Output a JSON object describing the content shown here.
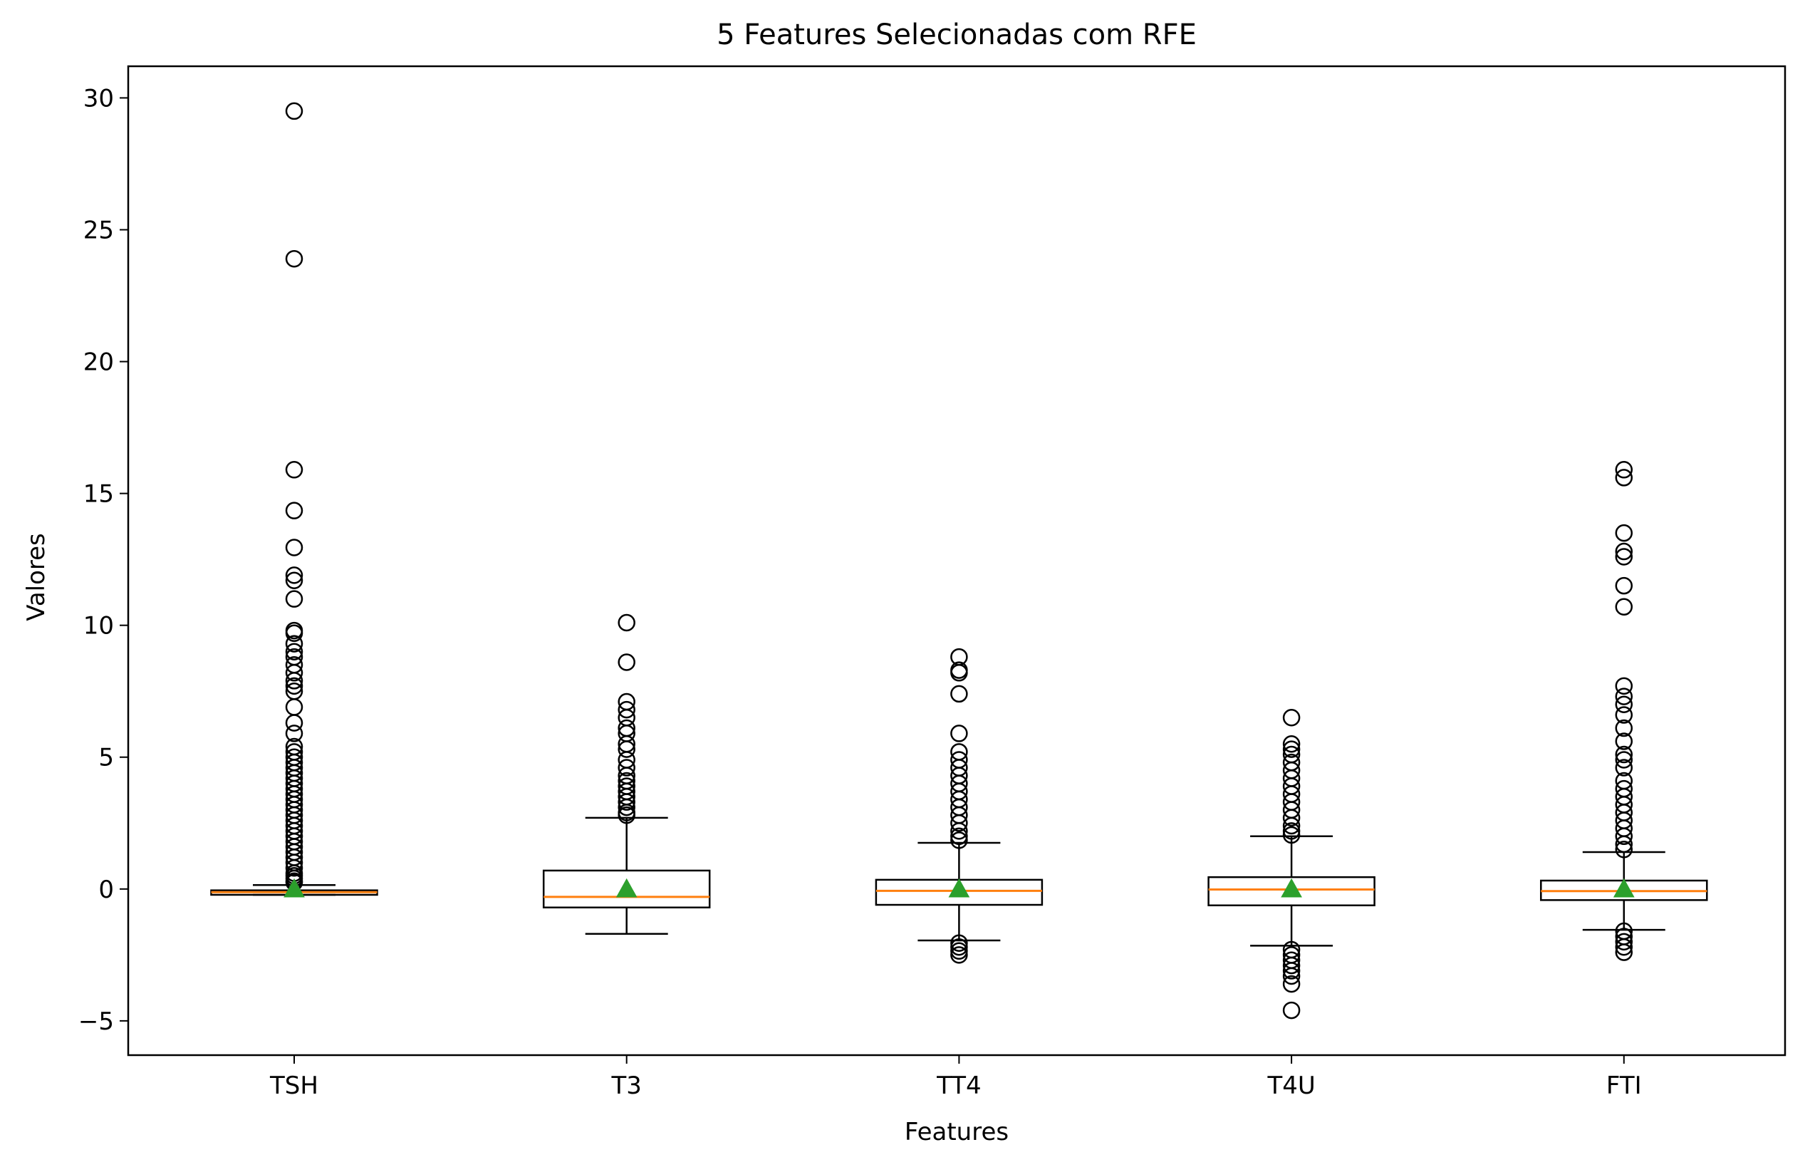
{
  "chart_data": {
    "type": "box",
    "title": "5 Features Selecionadas com RFE",
    "xlabel": "Features",
    "ylabel": "Valores",
    "ylim": [
      -6.3,
      31.2
    ],
    "yticks": [
      -5,
      0,
      5,
      10,
      15,
      20,
      25,
      30
    ],
    "yticklabels": [
      "−5",
      "0",
      "5",
      "10",
      "15",
      "20",
      "25",
      "30"
    ],
    "grid": false,
    "legend": "none",
    "colors": {
      "box": "#000000",
      "median": "#ff7f0e",
      "mean": "#2ca02c",
      "outlier": "#000000"
    },
    "categories": [
      "TSH",
      "T3",
      "TT4",
      "T4U",
      "FTI"
    ],
    "boxes": [
      {
        "name": "TSH",
        "q1": -0.22,
        "median": -0.12,
        "q3": -0.05,
        "whisker_low": -0.22,
        "whisker_high": 0.15,
        "mean": 0.0,
        "outliers": [
          29.5,
          23.9,
          15.9,
          14.35,
          12.95,
          11.9,
          11.7,
          11.0,
          9.8,
          9.7,
          9.3,
          9.0,
          8.8,
          8.5,
          8.2,
          7.9,
          7.7,
          7.5,
          6.9,
          6.3,
          5.9,
          5.4,
          5.2,
          5.0,
          4.8,
          4.6,
          4.4,
          4.2,
          4.0,
          3.8,
          3.6,
          3.4,
          3.2,
          3.0,
          2.8,
          2.6,
          2.4,
          2.2,
          2.0,
          1.8,
          1.6,
          1.4,
          1.2,
          1.0,
          0.8,
          0.6,
          0.5,
          0.4,
          0.3,
          0.25
        ]
      },
      {
        "name": "T3",
        "q1": -0.7,
        "median": -0.3,
        "q3": 0.7,
        "whisker_low": -1.7,
        "whisker_high": 2.7,
        "mean": 0.0,
        "outliers": [
          10.1,
          8.6,
          7.1,
          6.8,
          6.5,
          6.1,
          5.9,
          5.5,
          5.3,
          4.9,
          4.6,
          4.3,
          4.1,
          3.9,
          3.7,
          3.5,
          3.3,
          3.1,
          2.9,
          2.8
        ]
      },
      {
        "name": "TT4",
        "q1": -0.6,
        "median": -0.07,
        "q3": 0.35,
        "whisker_low": -1.95,
        "whisker_high": 1.75,
        "mean": 0.0,
        "outliers": [
          8.8,
          8.3,
          8.2,
          7.4,
          5.9,
          5.2,
          4.9,
          4.6,
          4.3,
          4.0,
          3.7,
          3.4,
          3.1,
          2.8,
          2.5,
          2.2,
          2.0,
          1.85,
          -2.05,
          -2.2,
          -2.35,
          -2.5
        ]
      },
      {
        "name": "T4U",
        "q1": -0.62,
        "median": -0.02,
        "q3": 0.45,
        "whisker_low": -2.15,
        "whisker_high": 2.0,
        "mean": 0.0,
        "outliers": [
          6.5,
          5.5,
          5.3,
          5.1,
          4.8,
          4.5,
          4.2,
          3.9,
          3.6,
          3.3,
          3.0,
          2.7,
          2.4,
          2.2,
          2.05,
          -2.3,
          -2.5,
          -2.7,
          -2.9,
          -3.1,
          -3.3,
          -3.6,
          -4.6
        ]
      },
      {
        "name": "FTI",
        "q1": -0.42,
        "median": -0.08,
        "q3": 0.32,
        "whisker_low": -1.55,
        "whisker_high": 1.4,
        "mean": 0.0,
        "outliers": [
          15.9,
          15.6,
          13.5,
          12.8,
          12.6,
          11.5,
          10.7,
          7.7,
          7.3,
          7.0,
          6.6,
          6.1,
          5.6,
          5.1,
          4.9,
          4.6,
          4.1,
          3.8,
          3.5,
          3.2,
          2.9,
          2.6,
          2.3,
          2.0,
          1.7,
          1.5,
          -1.6,
          -1.8,
          -2.0,
          -2.2,
          -2.4
        ]
      }
    ]
  }
}
